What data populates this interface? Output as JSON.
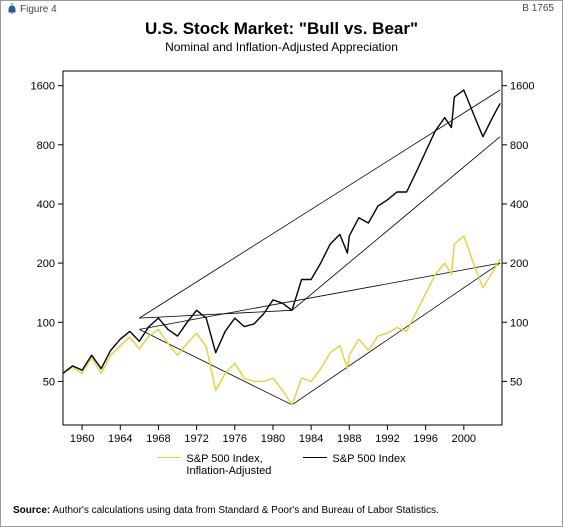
{
  "header": {
    "figure_label": "Figure 4",
    "doc_id": "B 1765"
  },
  "title": "U.S. Stock Market: \"Bull vs. Bear\"",
  "subtitle": "Nominal and Inflation-Adjusted Appreciation",
  "chart": {
    "type": "line",
    "scale_y": "log",
    "background_color": "#ffffff",
    "axis_color": "#000000",
    "tick_fontsize": 11,
    "x": {
      "min": 1958,
      "max": 2004,
      "ticks": [
        1960,
        1964,
        1968,
        1972,
        1976,
        1980,
        1984,
        1988,
        1992,
        1996,
        2000
      ]
    },
    "y": {
      "min": 30,
      "max": 1900,
      "ticks": [
        50,
        100,
        200,
        400,
        800,
        1600
      ]
    },
    "series": [
      {
        "name": "S&P 500 Index",
        "color": "#000000",
        "line_width": 1.4,
        "points": [
          [
            1958,
            55
          ],
          [
            1959,
            60
          ],
          [
            1960,
            57
          ],
          [
            1961,
            68
          ],
          [
            1962,
            58
          ],
          [
            1963,
            72
          ],
          [
            1964,
            82
          ],
          [
            1965,
            90
          ],
          [
            1966,
            80
          ],
          [
            1967,
            95
          ],
          [
            1968,
            105
          ],
          [
            1969,
            92
          ],
          [
            1970,
            85
          ],
          [
            1971,
            100
          ],
          [
            1972,
            115
          ],
          [
            1973,
            105
          ],
          [
            1974,
            70
          ],
          [
            1975,
            90
          ],
          [
            1976,
            105
          ],
          [
            1977,
            95
          ],
          [
            1978,
            98
          ],
          [
            1979,
            110
          ],
          [
            1980,
            130
          ],
          [
            1981,
            125
          ],
          [
            1982,
            115
          ],
          [
            1983,
            165
          ],
          [
            1984,
            165
          ],
          [
            1985,
            200
          ],
          [
            1986,
            250
          ],
          [
            1987,
            280
          ],
          [
            1987.8,
            225
          ],
          [
            1988,
            275
          ],
          [
            1989,
            340
          ],
          [
            1990,
            320
          ],
          [
            1991,
            390
          ],
          [
            1992,
            420
          ],
          [
            1993,
            460
          ],
          [
            1994,
            460
          ],
          [
            1995,
            580
          ],
          [
            1996,
            740
          ],
          [
            1997,
            940
          ],
          [
            1998,
            1100
          ],
          [
            1998.7,
            980
          ],
          [
            1999,
            1400
          ],
          [
            2000,
            1520
          ],
          [
            2001,
            1150
          ],
          [
            2002,
            880
          ],
          [
            2003,
            1100
          ],
          [
            2003.8,
            1300
          ]
        ],
        "trend": {
          "upper": [
            [
              1966,
              105
            ],
            [
              2003.8,
              1520
            ]
          ],
          "lower": [
            [
              1966,
              105
            ],
            [
              1982,
              115
            ],
            [
              2003.8,
              880
            ]
          ]
        }
      },
      {
        "name": "S&P 500 Index,\nInflation-Adjusted",
        "color": "#e8d132",
        "line_width": 1.4,
        "points": [
          [
            1958,
            55
          ],
          [
            1959,
            59
          ],
          [
            1960,
            55
          ],
          [
            1961,
            66
          ],
          [
            1962,
            55
          ],
          [
            1963,
            68
          ],
          [
            1964,
            76
          ],
          [
            1965,
            84
          ],
          [
            1966,
            73
          ],
          [
            1967,
            85
          ],
          [
            1968,
            92
          ],
          [
            1969,
            78
          ],
          [
            1970,
            68
          ],
          [
            1971,
            78
          ],
          [
            1972,
            88
          ],
          [
            1973,
            75
          ],
          [
            1974,
            45
          ],
          [
            1975,
            55
          ],
          [
            1976,
            62
          ],
          [
            1977,
            52
          ],
          [
            1978,
            50
          ],
          [
            1979,
            50
          ],
          [
            1980,
            52
          ],
          [
            1981,
            45
          ],
          [
            1982,
            38
          ],
          [
            1983,
            52
          ],
          [
            1984,
            50
          ],
          [
            1985,
            58
          ],
          [
            1986,
            70
          ],
          [
            1987,
            76
          ],
          [
            1987.8,
            58
          ],
          [
            1988,
            68
          ],
          [
            1989,
            82
          ],
          [
            1990,
            72
          ],
          [
            1991,
            85
          ],
          [
            1992,
            88
          ],
          [
            1993,
            94
          ],
          [
            1994,
            90
          ],
          [
            1995,
            112
          ],
          [
            1996,
            140
          ],
          [
            1997,
            175
          ],
          [
            1998,
            200
          ],
          [
            1998.7,
            175
          ],
          [
            1999,
            250
          ],
          [
            2000,
            275
          ],
          [
            2001,
            200
          ],
          [
            2002,
            150
          ],
          [
            2003,
            180
          ],
          [
            2003.8,
            210
          ]
        ],
        "trend": {
          "upper": [
            [
              1966,
              92
            ],
            [
              2003.8,
              200
            ]
          ],
          "lower": [
            [
              1966,
              92
            ],
            [
              1982,
              38
            ],
            [
              2003.8,
              200
            ]
          ]
        }
      }
    ]
  },
  "legend": {
    "items": [
      {
        "label": "S&P 500 Index,\nInflation-Adjusted",
        "color": "#e8d132"
      },
      {
        "label": "S&P 500 Index",
        "color": "#000000"
      }
    ]
  },
  "source": {
    "prefix": "Source:",
    "text": "Author's calculations using data from Standard & Poor's and Bureau of Labor Statistics."
  }
}
